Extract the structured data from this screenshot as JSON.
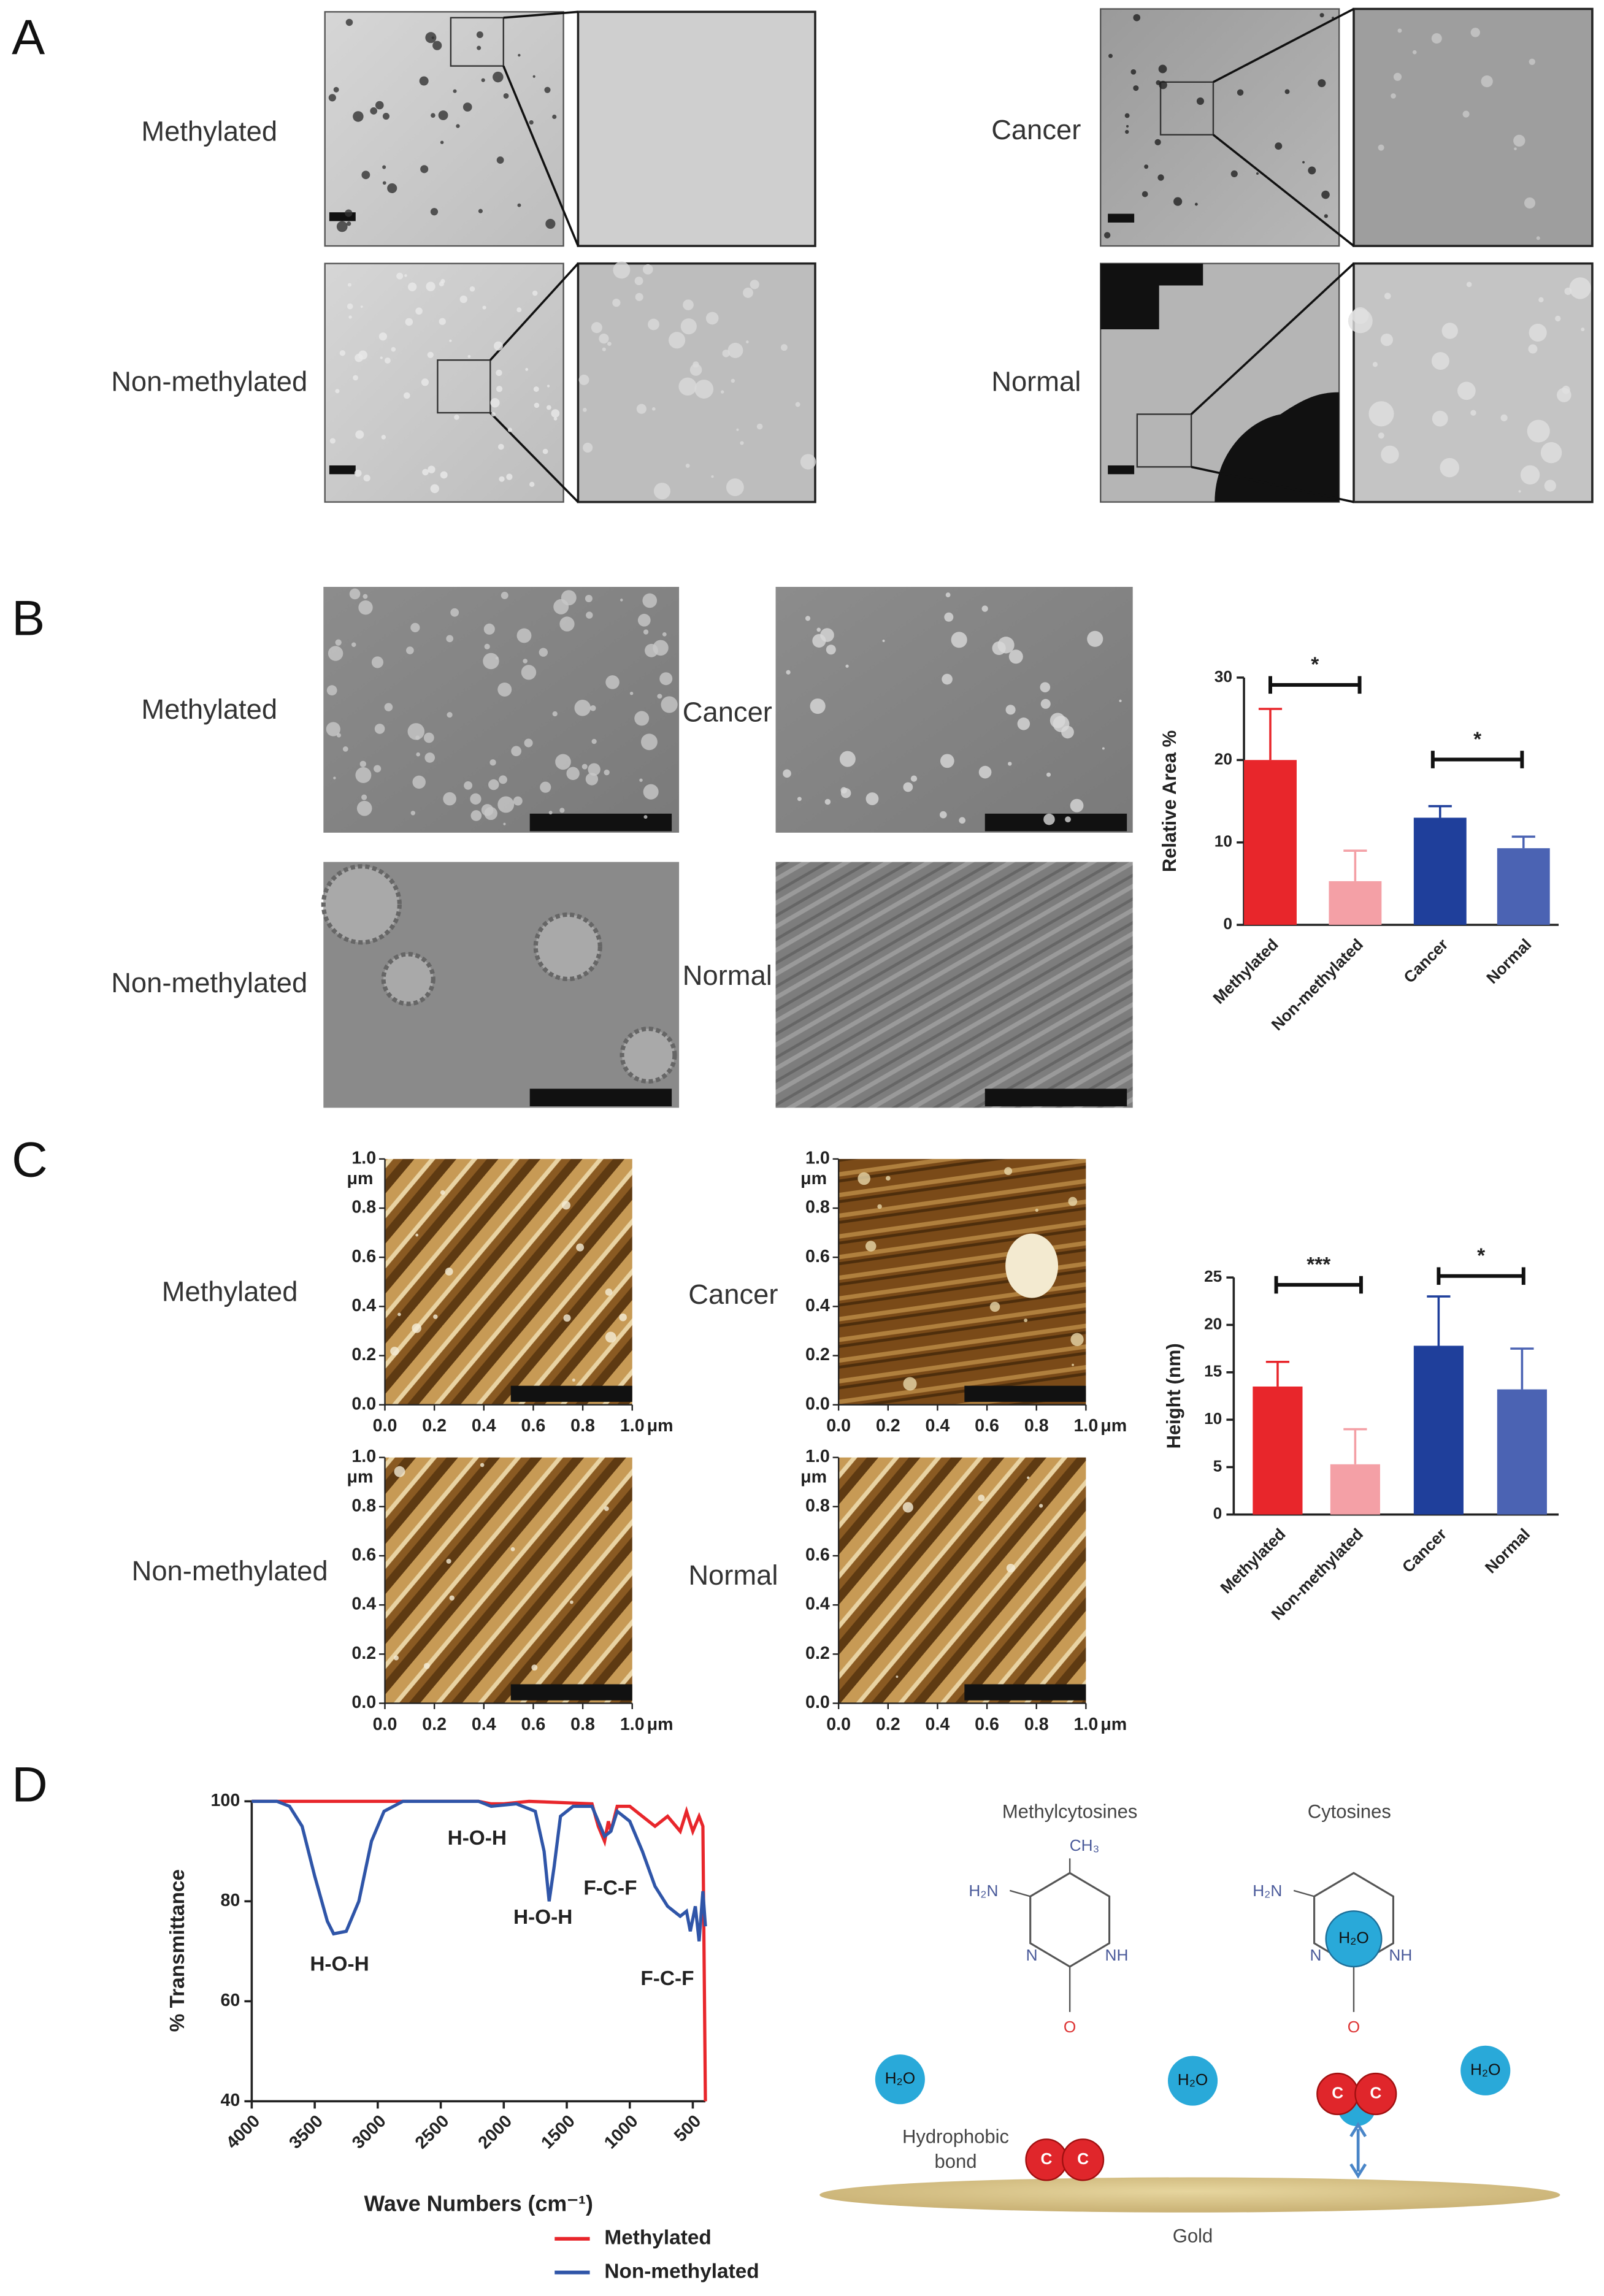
{
  "panels": {
    "a": {
      "letter": "A",
      "labels": [
        "Methylated",
        "Non-methylated",
        "Cancer",
        "Normal"
      ]
    },
    "b": {
      "letter": "B",
      "labels": [
        "Methylated",
        "Non-methylated",
        "Cancer",
        "Normal"
      ]
    },
    "c": {
      "letter": "C",
      "labels": [
        "Methylated",
        "Non-methylated",
        "Cancer",
        "Normal"
      ],
      "afm_ticks": [
        {
          "value": 0,
          "label": "0.0"
        },
        {
          "value": 0.2,
          "label": "0.2"
        },
        {
          "value": 0.4,
          "label": "0.4"
        },
        {
          "value": 0.6,
          "label": "0.6"
        },
        {
          "value": 0.8,
          "label": "0.8"
        },
        {
          "value": 1,
          "label": "1.0"
        }
      ],
      "afm_lim": [
        0,
        1
      ],
      "afm_unit": "μm"
    },
    "d": {
      "letter": "D"
    }
  },
  "chart_data": [
    {
      "type": "bar",
      "ylabel": "Relative Area %",
      "categories": [
        "Methylated",
        "Non-methylated",
        "Cancer",
        "Normal"
      ],
      "values": [
        20,
        5.3,
        13,
        9.3
      ],
      "errors": [
        6.2,
        3.7,
        1.4,
        1.4
      ],
      "colors": [
        "#e8262b",
        "#f4a0a6",
        "#1f3f9b",
        "#4b63b3"
      ],
      "ylim": [
        0,
        30
      ],
      "yticks": [
        0,
        10,
        20,
        30
      ],
      "annotations": [
        "*",
        "*"
      ]
    },
    {
      "type": "bar",
      "ylabel": "Height (nm)",
      "categories": [
        "Methylated",
        "Non-methylated",
        "Cancer",
        "Normal"
      ],
      "values": [
        13.5,
        5.3,
        17.8,
        13.2
      ],
      "errors": [
        2.6,
        3.7,
        5.2,
        4.3
      ],
      "colors": [
        "#e8262b",
        "#f4a0a6",
        "#1f3f9b",
        "#4b63b3"
      ],
      "ylim": [
        0,
        25
      ],
      "yticks": [
        0,
        5,
        10,
        15,
        20,
        25
      ],
      "annotations": [
        "***",
        "*"
      ]
    },
    {
      "type": "line",
      "xlabel": "Wave Numbers (cm⁻¹)",
      "ylabel": "% Transmittance",
      "xlim": [
        4000,
        400
      ],
      "xticks": [
        4000,
        3500,
        3000,
        2500,
        2000,
        1500,
        1000,
        500
      ],
      "ylim": [
        40,
        100
      ],
      "yticks": [
        40,
        60,
        80,
        100
      ],
      "legend": "bottom",
      "annotations": [
        "H-O-H",
        "H-O-H",
        "H-O-H",
        "F-C-F",
        "F-C-F"
      ],
      "series": [
        {
          "name": "Methylated",
          "color": "#e8262b",
          "x": [
            4000,
            3000,
            2200,
            2100,
            2000,
            1800,
            1300,
            1250,
            1200,
            1170,
            1150,
            1100,
            1000,
            900,
            800,
            700,
            600,
            550,
            500,
            450,
            420,
            400
          ],
          "values": [
            100,
            100,
            100,
            99.5,
            99.5,
            100,
            99.5,
            95,
            92,
            96,
            94,
            99,
            99,
            97,
            95,
            97,
            94,
            98,
            94,
            97,
            95,
            40
          ]
        },
        {
          "name": "Non-methylated",
          "color": "#2f55a8",
          "x": [
            4000,
            3800,
            3700,
            3600,
            3500,
            3400,
            3350,
            3250,
            3150,
            3050,
            2950,
            2800,
            2200,
            2100,
            1900,
            1750,
            1680,
            1640,
            1600,
            1550,
            1450,
            1300,
            1250,
            1200,
            1150,
            1100,
            1000,
            900,
            800,
            700,
            650,
            600,
            550,
            520,
            480,
            450,
            420,
            400
          ],
          "values": [
            100,
            100,
            99,
            95,
            85,
            76,
            73.5,
            74,
            80,
            92,
            98,
            100,
            100,
            99,
            99.5,
            98,
            90,
            80,
            87,
            97,
            99,
            99,
            96,
            93,
            94,
            98,
            96,
            90,
            83,
            79,
            78,
            77,
            78,
            74,
            79,
            72,
            82,
            75
          ]
        }
      ]
    }
  ],
  "diagram": {
    "methyl_title": "Methylcytosines",
    "cyto_title": "Cytosines",
    "ch3": "CH₃",
    "h2n": "H₂N",
    "n": "N",
    "nh": "NH",
    "o": "O",
    "water": "H₂O",
    "carbon": "C",
    "bond": [
      "Hydrophobic",
      "bond"
    ],
    "gold": "Gold"
  }
}
